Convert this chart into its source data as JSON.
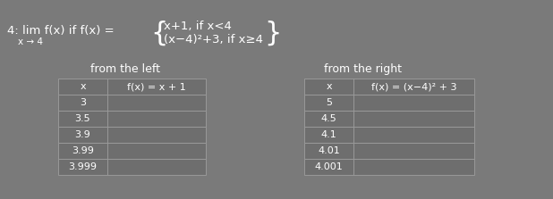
{
  "bg_color": "#7a7a7a",
  "text_color": "#ffffff",
  "title_main": "4: lim f(x) if f(x) = ",
  "title_sub": "x → 4",
  "piecewise_top": "x+1, if x<4",
  "piecewise_bot": "(x−4)²+3, if x≥4",
  "left_label": "from the left",
  "right_label": "from the right",
  "left_col1_header": "x",
  "left_col2_header": "f(x) = x + 1",
  "left_x_vals": [
    "3",
    "3.5",
    "3.9",
    "3.99",
    "3.999"
  ],
  "right_col1_header": "x",
  "right_col2_header": "f(x) = (x−4)² + 3",
  "right_x_vals": [
    "5",
    "4.5",
    "4.1",
    "4.01",
    "4.001"
  ],
  "table_face_color": "#6e6e6e",
  "table_edge_color": "#999999",
  "font_size_title": 9.5,
  "font_size_sub": 7.5,
  "font_size_label": 9,
  "font_size_table": 8
}
